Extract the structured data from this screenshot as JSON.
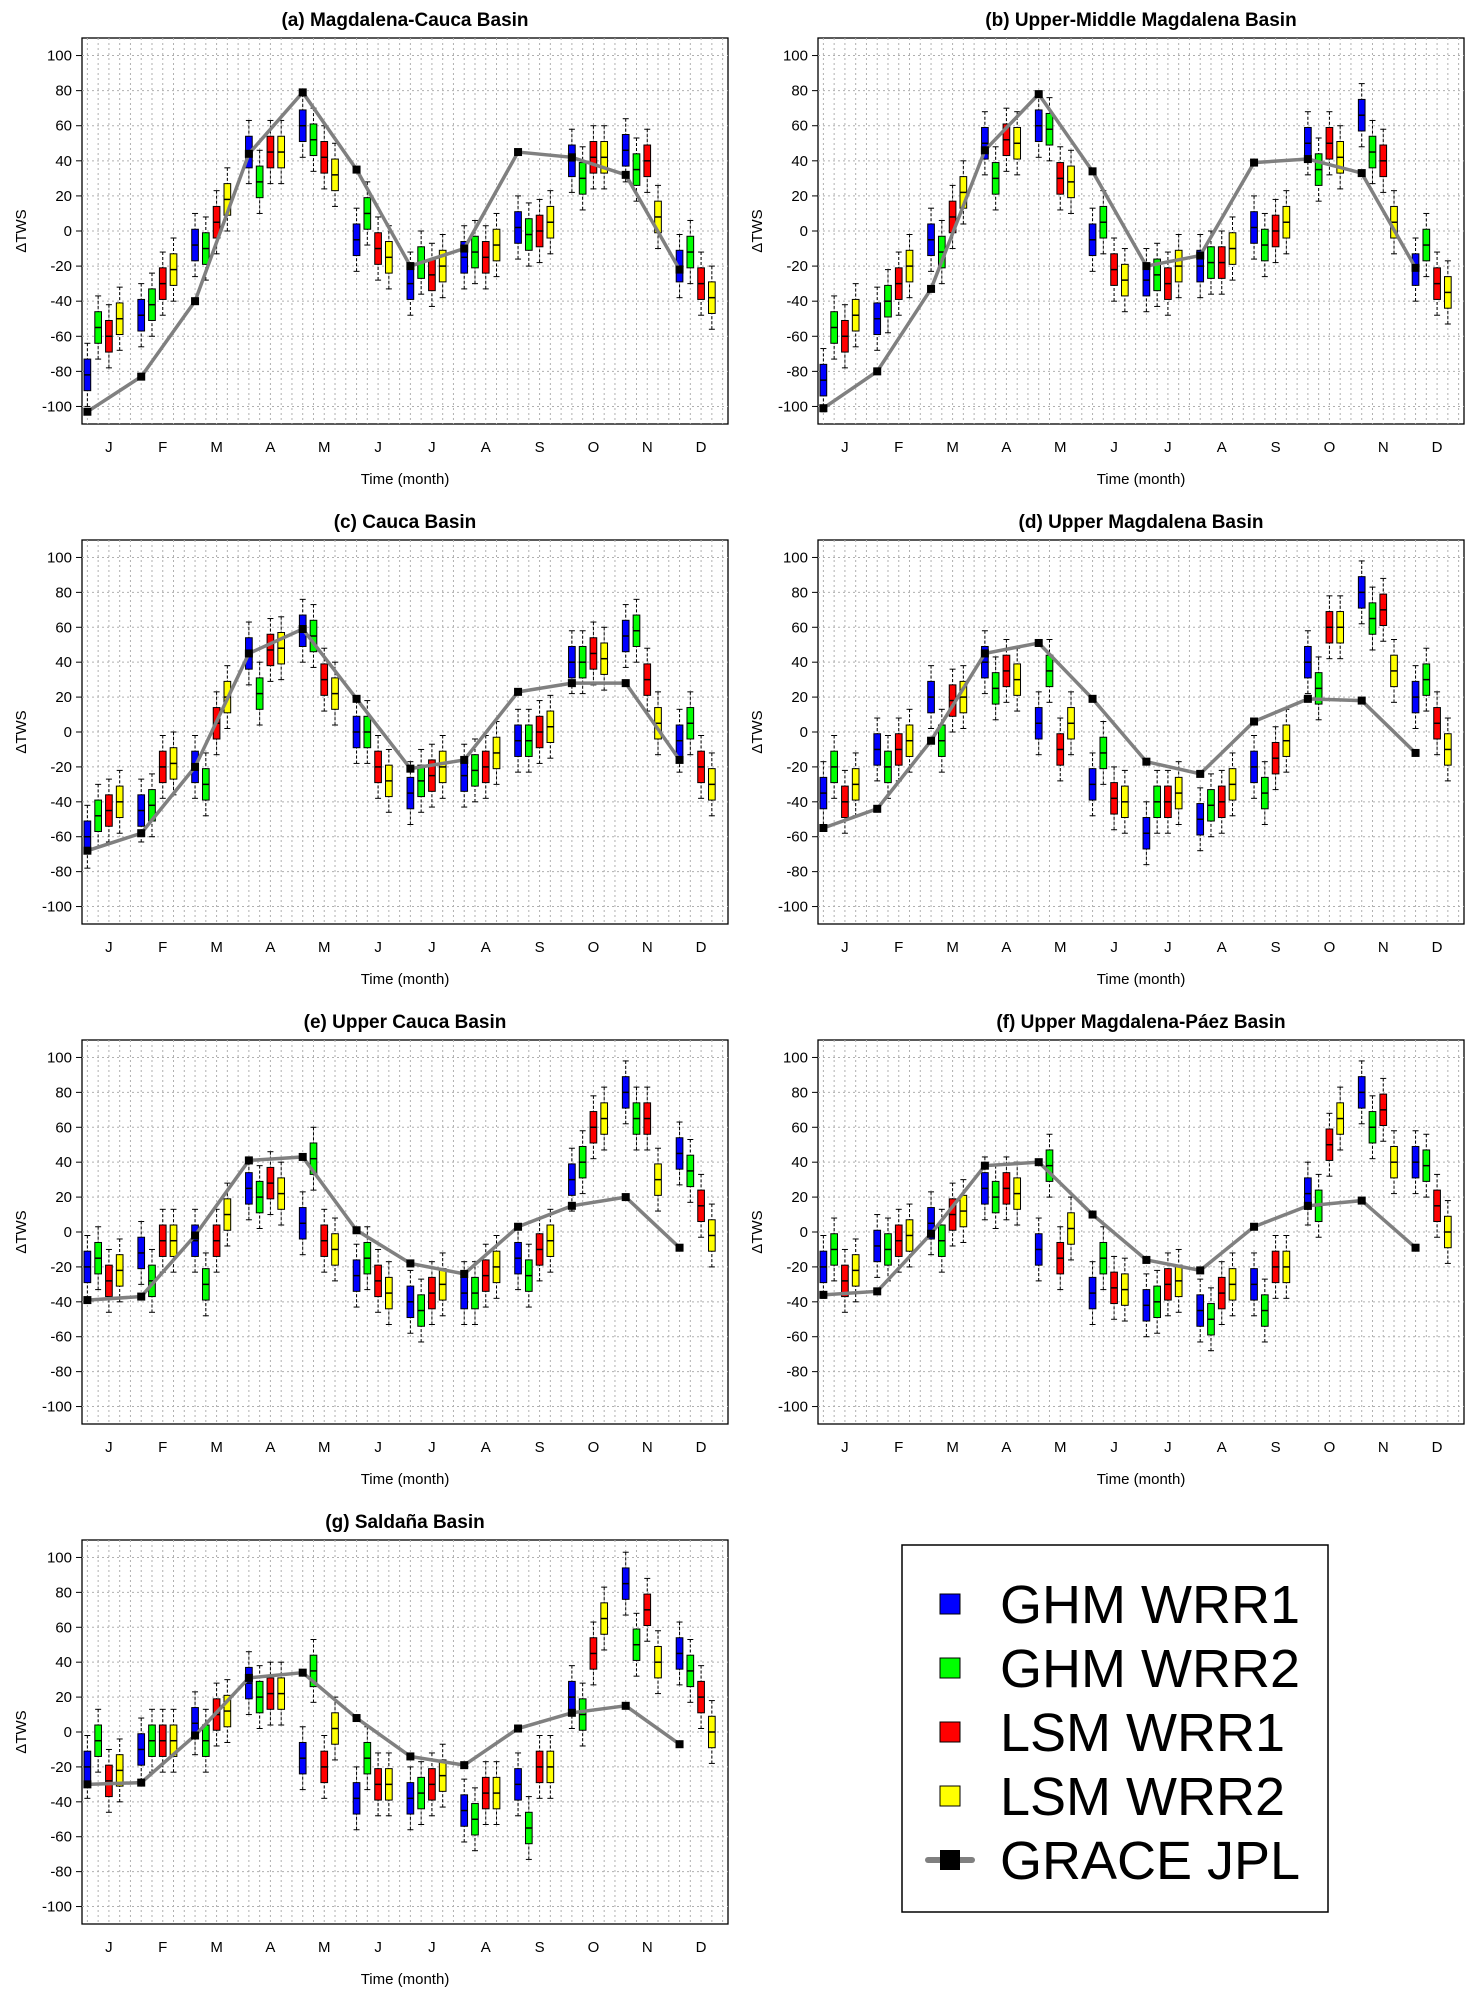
{
  "legend": {
    "items": [
      {
        "label": "GHM WRR1",
        "color": "#0000ff",
        "kind": "box"
      },
      {
        "label": "GHM WRR2",
        "color": "#00ff00",
        "kind": "box"
      },
      {
        "label": "LSM WRR1",
        "color": "#ff0000",
        "kind": "box"
      },
      {
        "label": "LSM WRR2",
        "color": "#ffff00",
        "kind": "box"
      },
      {
        "label": "GRACE JPL",
        "color": "#000000",
        "kind": "line-square",
        "line_color": "#808080"
      }
    ]
  },
  "colors": {
    "GHM WRR1": "#0000ff",
    "GHM WRR2": "#00ff00",
    "LSM WRR1": "#ff0000",
    "LSM WRR2": "#ffff00",
    "grace_line": "#808080",
    "grace_marker": "#000000",
    "grid": "#b0b0b0"
  },
  "chart_data": [
    {
      "type": "box+line",
      "title": "(a) Magdalena-Cauca Basin",
      "xlabel": "Time (month)",
      "ylabel": "ΔTWS",
      "categories": [
        "J",
        "F",
        "M",
        "A",
        "M",
        "J",
        "J",
        "A",
        "S",
        "O",
        "N",
        "D"
      ],
      "ylim": [
        -110,
        110
      ],
      "yticks": [
        -100,
        -80,
        -60,
        -40,
        -20,
        0,
        20,
        40,
        60,
        80,
        100
      ],
      "grid": true,
      "series": [
        {
          "name": "GHM WRR1",
          "box_medians": [
            -82,
            -48,
            -8,
            45,
            60,
            -5,
            -30,
            -15,
            2,
            40,
            46,
            -20
          ]
        },
        {
          "name": "GHM WRR2",
          "box_medians": [
            -55,
            -42,
            -10,
            28,
            52,
            10,
            -18,
            -12,
            -2,
            30,
            35,
            -12
          ]
        },
        {
          "name": "LSM WRR1",
          "box_medians": [
            -60,
            -30,
            5,
            45,
            42,
            -10,
            -25,
            -15,
            0,
            42,
            40,
            -30
          ]
        },
        {
          "name": "LSM WRR2",
          "box_medians": [
            -50,
            -22,
            18,
            45,
            32,
            -15,
            -20,
            -8,
            5,
            42,
            8,
            -38
          ]
        },
        {
          "name": "GRACE JPL",
          "values": [
            -103,
            -83,
            -40,
            44,
            79,
            35,
            -20,
            -10,
            45,
            42,
            32,
            -22
          ]
        }
      ]
    },
    {
      "type": "box+line",
      "title": "(b) Upper-Middle Magdalena Basin",
      "xlabel": "Time (month)",
      "ylabel": "ΔTWS",
      "categories": [
        "J",
        "F",
        "M",
        "A",
        "M",
        "J",
        "J",
        "A",
        "S",
        "O",
        "N",
        "D"
      ],
      "ylim": [
        -110,
        110
      ],
      "yticks": [
        -100,
        -80,
        -60,
        -40,
        -20,
        0,
        20,
        40,
        60,
        80,
        100
      ],
      "grid": true,
      "series": [
        {
          "name": "GHM WRR1",
          "box_medians": [
            -85,
            -50,
            -5,
            50,
            60,
            -5,
            -28,
            -20,
            2,
            50,
            66,
            -22
          ]
        },
        {
          "name": "GHM WRR2",
          "box_medians": [
            -55,
            -40,
            -12,
            30,
            58,
            5,
            -25,
            -18,
            -8,
            35,
            45,
            -8
          ]
        },
        {
          "name": "LSM WRR1",
          "box_medians": [
            -60,
            -30,
            8,
            52,
            30,
            -22,
            -30,
            -18,
            0,
            50,
            40,
            -30
          ]
        },
        {
          "name": "LSM WRR2",
          "box_medians": [
            -48,
            -20,
            22,
            50,
            28,
            -28,
            -20,
            -10,
            5,
            42,
            5,
            -35
          ]
        },
        {
          "name": "GRACE JPL",
          "values": [
            -101,
            -80,
            -33,
            46,
            78,
            34,
            -20,
            -14,
            39,
            41,
            33,
            -21
          ]
        }
      ]
    },
    {
      "type": "box+line",
      "title": "(c) Cauca Basin",
      "xlabel": "Time (month)",
      "ylabel": "ΔTWS",
      "categories": [
        "J",
        "F",
        "M",
        "A",
        "M",
        "J",
        "J",
        "A",
        "S",
        "O",
        "N",
        "D"
      ],
      "ylim": [
        -110,
        110
      ],
      "yticks": [
        -100,
        -80,
        -60,
        -40,
        -20,
        0,
        20,
        40,
        60,
        80,
        100
      ],
      "grid": true,
      "series": [
        {
          "name": "GHM WRR1",
          "box_medians": [
            -60,
            -45,
            -20,
            45,
            58,
            0,
            -35,
            -25,
            -5,
            40,
            55,
            -5
          ]
        },
        {
          "name": "GHM WRR2",
          "box_medians": [
            -48,
            -42,
            -30,
            22,
            55,
            0,
            -28,
            -22,
            -5,
            40,
            58,
            5
          ]
        },
        {
          "name": "LSM WRR1",
          "box_medians": [
            -45,
            -20,
            5,
            47,
            30,
            -20,
            -25,
            -20,
            0,
            45,
            30,
            -20
          ]
        },
        {
          "name": "LSM WRR2",
          "box_medians": [
            -40,
            -18,
            20,
            48,
            22,
            -28,
            -20,
            -12,
            3,
            42,
            5,
            -30
          ]
        },
        {
          "name": "GRACE JPL",
          "values": [
            -68,
            -58,
            -20,
            45,
            59,
            19,
            -21,
            -16,
            23,
            28,
            28,
            -16
          ]
        }
      ]
    },
    {
      "type": "box+line",
      "title": "(d) Upper Magdalena Basin",
      "xlabel": "Time (month)",
      "ylabel": "ΔTWS",
      "categories": [
        "J",
        "F",
        "M",
        "A",
        "M",
        "J",
        "J",
        "A",
        "S",
        "O",
        "N",
        "D"
      ],
      "ylim": [
        -110,
        110
      ],
      "yticks": [
        -100,
        -80,
        -60,
        -40,
        -20,
        0,
        20,
        40,
        60,
        80,
        100
      ],
      "grid": true,
      "series": [
        {
          "name": "GHM WRR1",
          "box_medians": [
            -35,
            -10,
            20,
            40,
            5,
            -30,
            -58,
            -50,
            -20,
            40,
            80,
            20
          ]
        },
        {
          "name": "GHM WRR2",
          "box_medians": [
            -20,
            -20,
            -5,
            25,
            35,
            -12,
            -40,
            -42,
            -35,
            25,
            65,
            30
          ]
        },
        {
          "name": "LSM WRR1",
          "box_medians": [
            -40,
            -10,
            18,
            35,
            -10,
            -38,
            -40,
            -40,
            -15,
            60,
            70,
            5
          ]
        },
        {
          "name": "LSM WRR2",
          "box_medians": [
            -30,
            -5,
            20,
            30,
            5,
            -40,
            -35,
            -30,
            -5,
            60,
            35,
            -10
          ]
        },
        {
          "name": "GRACE JPL",
          "values": [
            -55,
            -44,
            -5,
            45,
            51,
            19,
            -17,
            -24,
            6,
            19,
            18,
            -12
          ]
        }
      ]
    },
    {
      "type": "box+line",
      "title": "(e) Upper Cauca Basin",
      "xlabel": "Time (month)",
      "ylabel": "ΔTWS",
      "categories": [
        "J",
        "F",
        "M",
        "A",
        "M",
        "J",
        "J",
        "A",
        "S",
        "O",
        "N",
        "D"
      ],
      "ylim": [
        -110,
        110
      ],
      "yticks": [
        -100,
        -80,
        -60,
        -40,
        -20,
        0,
        20,
        40,
        60,
        80,
        100
      ],
      "grid": true,
      "series": [
        {
          "name": "GHM WRR1",
          "box_medians": [
            -20,
            -12,
            -5,
            25,
            5,
            -25,
            -40,
            -35,
            -15,
            30,
            80,
            45
          ]
        },
        {
          "name": "GHM WRR2",
          "box_medians": [
            -15,
            -28,
            -30,
            20,
            42,
            -15,
            -45,
            -35,
            -25,
            40,
            65,
            35
          ]
        },
        {
          "name": "LSM WRR1",
          "box_medians": [
            -28,
            -5,
            -5,
            28,
            -5,
            -28,
            -35,
            -25,
            -10,
            60,
            65,
            15
          ]
        },
        {
          "name": "LSM WRR2",
          "box_medians": [
            -22,
            -5,
            10,
            22,
            -10,
            -35,
            -30,
            -20,
            -5,
            65,
            30,
            -2
          ]
        },
        {
          "name": "GRACE JPL",
          "values": [
            -39,
            -37,
            -2,
            41,
            43,
            1,
            -18,
            -24,
            3,
            15,
            20,
            -9
          ]
        }
      ]
    },
    {
      "type": "box+line",
      "title": "(f) Upper Magdalena-Páez Basin",
      "xlabel": "Time (month)",
      "ylabel": "ΔTWS",
      "categories": [
        "J",
        "F",
        "M",
        "A",
        "M",
        "J",
        "J",
        "A",
        "S",
        "O",
        "N",
        "D"
      ],
      "ylim": [
        -110,
        110
      ],
      "yticks": [
        -100,
        -80,
        -60,
        -40,
        -20,
        0,
        20,
        40,
        60,
        80,
        100
      ],
      "grid": true,
      "series": [
        {
          "name": "GHM WRR1",
          "box_medians": [
            -20,
            -8,
            5,
            25,
            -10,
            -35,
            -42,
            -45,
            -30,
            22,
            80,
            40
          ]
        },
        {
          "name": "GHM WRR2",
          "box_medians": [
            -10,
            -10,
            -5,
            20,
            38,
            -15,
            -40,
            -50,
            -45,
            15,
            60,
            38
          ]
        },
        {
          "name": "LSM WRR1",
          "box_medians": [
            -28,
            -5,
            10,
            25,
            -15,
            -32,
            -30,
            -35,
            -20,
            50,
            70,
            15
          ]
        },
        {
          "name": "LSM WRR2",
          "box_medians": [
            -22,
            -2,
            12,
            22,
            2,
            -33,
            -28,
            -30,
            -20,
            65,
            40,
            0
          ]
        },
        {
          "name": "GRACE JPL",
          "values": [
            -36,
            -34,
            -1,
            38,
            40,
            10,
            -16,
            -22,
            3,
            15,
            18,
            -9
          ]
        }
      ]
    },
    {
      "type": "box+line",
      "title": "(g) Saldaña Basin",
      "xlabel": "Time (month)",
      "ylabel": "ΔTWS",
      "categories": [
        "J",
        "F",
        "M",
        "A",
        "M",
        "J",
        "J",
        "A",
        "S",
        "O",
        "N",
        "D"
      ],
      "ylim": [
        -110,
        110
      ],
      "yticks": [
        -100,
        -80,
        -60,
        -40,
        -20,
        0,
        20,
        40,
        60,
        80,
        100
      ],
      "grid": true,
      "series": [
        {
          "name": "GHM WRR1",
          "box_medians": [
            -20,
            -10,
            5,
            28,
            -15,
            -38,
            -38,
            -45,
            -30,
            20,
            85,
            45
          ]
        },
        {
          "name": "GHM WRR2",
          "box_medians": [
            -5,
            -5,
            -5,
            20,
            35,
            -15,
            -35,
            -50,
            -55,
            10,
            50,
            35
          ]
        },
        {
          "name": "LSM WRR1",
          "box_medians": [
            -28,
            -5,
            10,
            22,
            -20,
            -30,
            -30,
            -35,
            -20,
            45,
            70,
            20
          ]
        },
        {
          "name": "LSM WRR2",
          "box_medians": [
            -22,
            -5,
            12,
            22,
            2,
            -30,
            -25,
            -35,
            -20,
            65,
            40,
            0
          ]
        },
        {
          "name": "GRACE JPL",
          "values": [
            -30,
            -29,
            -2,
            31,
            34,
            8,
            -14,
            -19,
            2,
            11,
            15,
            -7
          ]
        }
      ]
    }
  ]
}
